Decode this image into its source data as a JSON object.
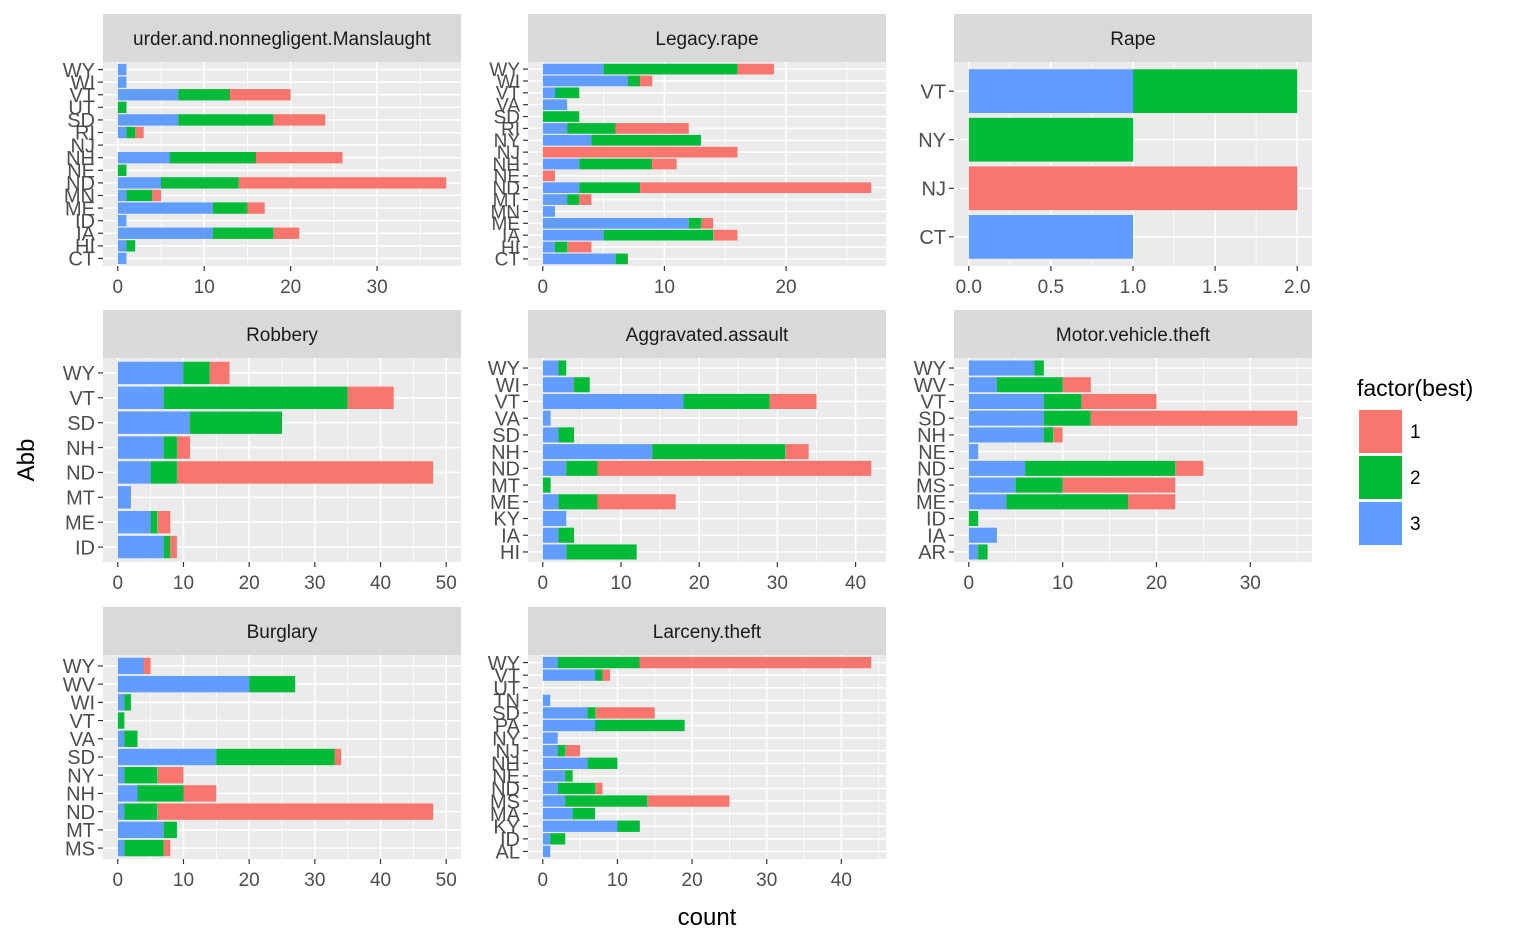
{
  "axis_labels": {
    "x": "count",
    "y": "Abb"
  },
  "legend": {
    "title": "factor(best)",
    "entries": [
      {
        "label": "1",
        "color": "#F8766D"
      },
      {
        "label": "2",
        "color": "#00BA38"
      },
      {
        "label": "3",
        "color": "#619CFF"
      }
    ]
  },
  "colors": {
    "1": "#F8766D",
    "2": "#00BA38",
    "3": "#619CFF",
    "panel_bg": "#EBEBEB",
    "strip_bg": "#D9D9D9",
    "grid": "#FFFFFF"
  },
  "chart_data": [
    {
      "type": "bar",
      "stacked": true,
      "orientation": "horizontal",
      "title": "Murder.and.nonnegligent.Manslaughter",
      "display_title": "urder.and.nonnegligent.Manslaught",
      "xlim": [
        0,
        38
      ],
      "xticks": [
        0,
        10,
        20,
        30
      ],
      "categories": [
        "CT",
        "HI",
        "IA",
        "ID",
        "ME",
        "MN",
        "ND",
        "NE",
        "NH",
        "NJ",
        "RI",
        "SD",
        "UT",
        "VT",
        "WI",
        "WY"
      ],
      "series": [
        {
          "name": "3",
          "values": [
            1,
            1,
            11,
            1,
            11,
            1,
            5,
            0,
            6,
            0,
            1,
            7,
            0,
            7,
            1,
            1
          ]
        },
        {
          "name": "2",
          "values": [
            0,
            1,
            7,
            0,
            4,
            3,
            9,
            1,
            10,
            0,
            1,
            11,
            1,
            6,
            0,
            0
          ]
        },
        {
          "name": "1",
          "values": [
            0,
            0,
            3,
            0,
            2,
            1,
            24,
            0,
            10,
            0,
            1,
            6,
            0,
            7,
            0,
            0
          ]
        }
      ]
    },
    {
      "type": "bar",
      "stacked": true,
      "orientation": "horizontal",
      "title": "Legacy.rape",
      "xlim": [
        0,
        27
      ],
      "xticks": [
        0,
        10,
        20
      ],
      "categories": [
        "CT",
        "HI",
        "IA",
        "ME",
        "MN",
        "MT",
        "ND",
        "NE",
        "NH",
        "NJ",
        "NY",
        "RI",
        "SD",
        "VA",
        "VT",
        "WI",
        "WY"
      ],
      "series": [
        {
          "name": "3",
          "values": [
            6,
            1,
            5,
            12,
            1,
            2,
            3,
            0,
            3,
            0,
            4,
            2,
            0,
            2,
            1,
            7,
            5
          ]
        },
        {
          "name": "2",
          "values": [
            1,
            1,
            9,
            1,
            0,
            1,
            5,
            0,
            6,
            0,
            9,
            4,
            3,
            0,
            2,
            1,
            11
          ]
        },
        {
          "name": "1",
          "values": [
            0,
            2,
            2,
            1,
            0,
            1,
            19,
            1,
            2,
            16,
            0,
            6,
            0,
            0,
            0,
            1,
            3
          ]
        }
      ]
    },
    {
      "type": "bar",
      "stacked": true,
      "orientation": "horizontal",
      "title": "Rape",
      "xlim": [
        0,
        2
      ],
      "xticks": [
        0.0,
        0.5,
        1.0,
        1.5,
        2.0
      ],
      "xtick_labels": [
        "0.0",
        "0.5",
        "1.0",
        "1.5",
        "2.0"
      ],
      "categories": [
        "CT",
        "NJ",
        "NY",
        "VT"
      ],
      "series": [
        {
          "name": "3",
          "values": [
            1,
            0,
            0,
            1
          ]
        },
        {
          "name": "2",
          "values": [
            0,
            0,
            1,
            1
          ]
        },
        {
          "name": "1",
          "values": [
            0,
            2,
            0,
            0
          ]
        }
      ]
    },
    {
      "type": "bar",
      "stacked": true,
      "orientation": "horizontal",
      "title": "Robbery",
      "xlim": [
        0,
        50
      ],
      "xticks": [
        0,
        10,
        20,
        30,
        40,
        50
      ],
      "categories": [
        "ID",
        "ME",
        "MT",
        "ND",
        "NH",
        "SD",
        "VT",
        "WY"
      ],
      "series": [
        {
          "name": "3",
          "values": [
            7,
            5,
            2,
            5,
            7,
            11,
            7,
            10
          ]
        },
        {
          "name": "2",
          "values": [
            1,
            1,
            0,
            4,
            2,
            14,
            28,
            4
          ]
        },
        {
          "name": "1",
          "values": [
            1,
            2,
            0,
            39,
            2,
            0,
            7,
            3
          ]
        }
      ]
    },
    {
      "type": "bar",
      "stacked": true,
      "orientation": "horizontal",
      "title": "Aggravated.assault",
      "xlim": [
        0,
        42
      ],
      "xticks": [
        0,
        10,
        20,
        30,
        40
      ],
      "categories": [
        "HI",
        "IA",
        "KY",
        "ME",
        "MT",
        "ND",
        "NH",
        "SD",
        "VA",
        "VT",
        "WI",
        "WY"
      ],
      "series": [
        {
          "name": "3",
          "values": [
            3,
            2,
            3,
            2,
            0,
            3,
            14,
            2,
            1,
            18,
            4,
            2
          ]
        },
        {
          "name": "2",
          "values": [
            9,
            2,
            0,
            5,
            1,
            4,
            17,
            2,
            0,
            11,
            2,
            1
          ]
        },
        {
          "name": "1",
          "values": [
            0,
            0,
            0,
            10,
            0,
            35,
            3,
            0,
            0,
            6,
            0,
            0
          ]
        }
      ]
    },
    {
      "type": "bar",
      "stacked": true,
      "orientation": "horizontal",
      "title": "Motor.vehicle.theft",
      "xlim": [
        0,
        35
      ],
      "xticks": [
        0,
        10,
        20,
        30
      ],
      "categories": [
        "AR",
        "IA",
        "ID",
        "ME",
        "MS",
        "ND",
        "NE",
        "NH",
        "SD",
        "VT",
        "WV",
        "WY"
      ],
      "series": [
        {
          "name": "3",
          "values": [
            1,
            3,
            0,
            4,
            5,
            6,
            1,
            8,
            8,
            8,
            3,
            7
          ]
        },
        {
          "name": "2",
          "values": [
            1,
            0,
            1,
            13,
            5,
            16,
            0,
            1,
            5,
            4,
            7,
            1
          ]
        },
        {
          "name": "1",
          "values": [
            0,
            0,
            0,
            5,
            12,
            3,
            0,
            1,
            22,
            8,
            3,
            0
          ]
        }
      ]
    },
    {
      "type": "bar",
      "stacked": true,
      "orientation": "horizontal",
      "title": "Burglary",
      "xlim": [
        0,
        50
      ],
      "xticks": [
        0,
        10,
        20,
        30,
        40,
        50
      ],
      "categories": [
        "MS",
        "MT",
        "ND",
        "NH",
        "NY",
        "SD",
        "VA",
        "VT",
        "WI",
        "WV",
        "WY"
      ],
      "series": [
        {
          "name": "3",
          "values": [
            1,
            7,
            1,
            3,
            1,
            15,
            1,
            0,
            1,
            20,
            4
          ]
        },
        {
          "name": "2",
          "values": [
            6,
            2,
            5,
            7,
            5,
            18,
            2,
            1,
            1,
            7,
            0
          ]
        },
        {
          "name": "1",
          "values": [
            1,
            0,
            42,
            5,
            4,
            1,
            0,
            0,
            0,
            0,
            1
          ]
        }
      ]
    },
    {
      "type": "bar",
      "stacked": true,
      "orientation": "horizontal",
      "title": "Larceny.theft",
      "xlim": [
        0,
        44
      ],
      "xticks": [
        0,
        10,
        20,
        30,
        40
      ],
      "categories": [
        "AL",
        "ID",
        "KY",
        "MA",
        "MS",
        "ND",
        "NE",
        "NH",
        "NJ",
        "NY",
        "PA",
        "SD",
        "TN",
        "UT",
        "VT",
        "WY"
      ],
      "series": [
        {
          "name": "3",
          "values": [
            1,
            1,
            10,
            4,
            3,
            2,
            3,
            6,
            2,
            2,
            7,
            6,
            1,
            0,
            7,
            2
          ]
        },
        {
          "name": "2",
          "values": [
            0,
            2,
            3,
            3,
            11,
            5,
            1,
            4,
            1,
            0,
            12,
            1,
            0,
            0,
            1,
            11
          ]
        },
        {
          "name": "1",
          "values": [
            0,
            0,
            0,
            0,
            11,
            1,
            0,
            0,
            2,
            0,
            0,
            8,
            0,
            0,
            1,
            31
          ]
        }
      ]
    }
  ]
}
